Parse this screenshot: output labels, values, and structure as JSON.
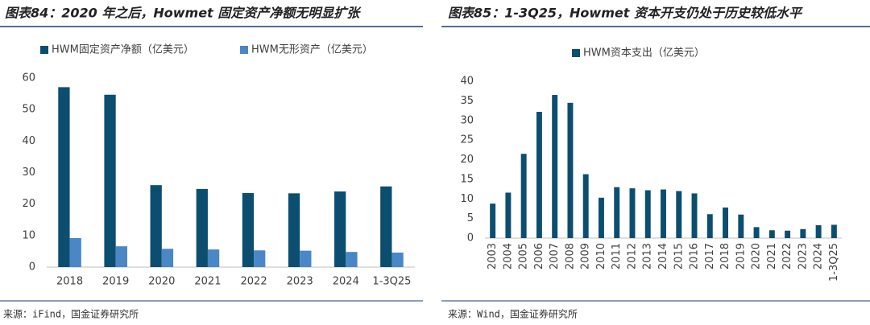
{
  "chart_data": [
    {
      "type": "bar",
      "title": "图表84：2020 年之后，Howmet 固定资产净额无明显扩张",
      "categories": [
        "2018",
        "2019",
        "2020",
        "2021",
        "2022",
        "2023",
        "2024",
        "1-3Q25"
      ],
      "series": [
        {
          "name": "HWM固定资产净额（亿美元）",
          "color": "#0c4e6f",
          "values": [
            57.1,
            54.7,
            26.0,
            24.8,
            23.5,
            23.4,
            24.0,
            25.6
          ]
        },
        {
          "name": "HWM无形资产（亿美元）",
          "color": "#4b86c6",
          "values": [
            9.2,
            6.6,
            5.8,
            5.6,
            5.3,
            5.2,
            4.8,
            4.6
          ]
        }
      ],
      "ylim": [
        0,
        60
      ],
      "yticks": [
        0,
        10,
        20,
        30,
        40,
        50,
        60
      ],
      "grid": false,
      "source": "来源：iFind，国金证券研究所"
    },
    {
      "type": "bar",
      "title": "图表85：1-3Q25，Howmet 资本开支仍处于历史较低水平",
      "categories": [
        "2003",
        "2004",
        "2005",
        "2006",
        "2007",
        "2008",
        "2009",
        "2010",
        "2011",
        "2012",
        "2013",
        "2014",
        "2015",
        "2016",
        "2017",
        "2018",
        "2019",
        "2020",
        "2021",
        "2022",
        "2023",
        "2024",
        "1-3Q25"
      ],
      "series": [
        {
          "name": "HWM资本支出（亿美元）",
          "color": "#0c4e6f",
          "values": [
            8.8,
            11.6,
            21.5,
            32.2,
            36.5,
            34.5,
            16.3,
            10.3,
            13.0,
            12.7,
            12.2,
            12.4,
            12.0,
            11.4,
            6.1,
            7.8,
            6.0,
            2.8,
            2.0,
            1.9,
            2.3,
            3.3,
            3.4
          ]
        }
      ],
      "ylim": [
        0,
        40
      ],
      "yticks": [
        0,
        5,
        10,
        15,
        20,
        25,
        30,
        35,
        40
      ],
      "grid": false,
      "source": "来源：Wind，国金证券研究所"
    }
  ]
}
